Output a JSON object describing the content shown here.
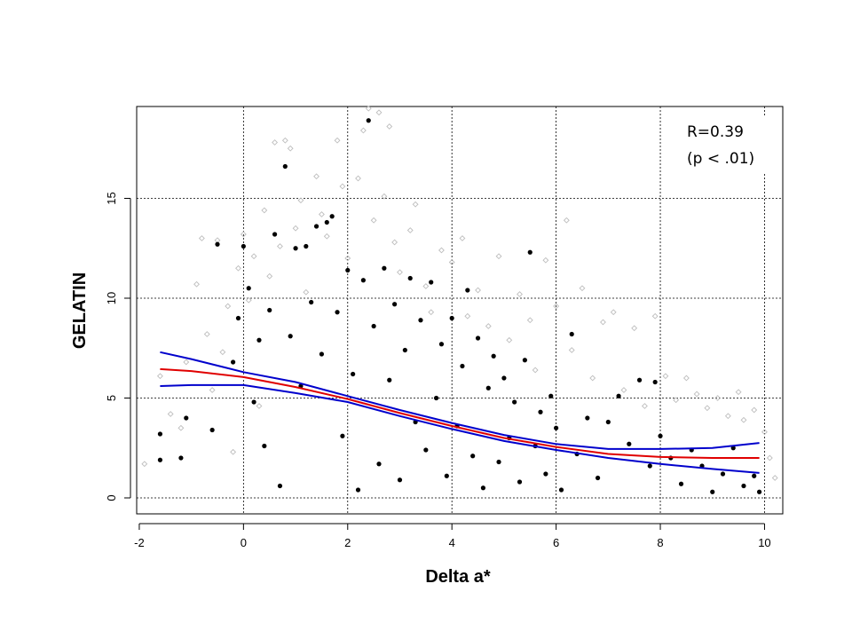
{
  "chart_data": {
    "type": "scatter",
    "xlabel": "Delta a*",
    "ylabel": "GELATIN",
    "xlim": [
      -2.05,
      10.35
    ],
    "ylim": [
      -0.8,
      19.6
    ],
    "x_ticks": [
      -2,
      0,
      2,
      4,
      6,
      8,
      10
    ],
    "y_ticks": [
      0,
      5,
      10,
      15
    ],
    "grid": true,
    "annotations": [
      "R=0.39",
      "(p < .01)"
    ],
    "colors": {
      "background_points": "#bdbdbd",
      "foreground_points": "#000000",
      "fit_line": "#e00000",
      "confidence_band": "#0000cc"
    },
    "series": [
      {
        "marker": "open-diamond",
        "color": "#bdbdbd",
        "points": [
          [
            -1.9,
            1.7
          ],
          [
            -1.6,
            6.1
          ],
          [
            -1.4,
            4.2
          ],
          [
            -1.2,
            3.5
          ],
          [
            -1.1,
            6.8
          ],
          [
            -0.9,
            10.7
          ],
          [
            -0.8,
            13.0
          ],
          [
            -0.7,
            8.2
          ],
          [
            -0.6,
            5.4
          ],
          [
            -0.5,
            12.9
          ],
          [
            -0.4,
            7.3
          ],
          [
            -0.3,
            9.6
          ],
          [
            -0.2,
            2.3
          ],
          [
            -0.1,
            11.5
          ],
          [
            0.0,
            13.2
          ],
          [
            0.1,
            9.9
          ],
          [
            0.2,
            12.1
          ],
          [
            0.3,
            4.6
          ],
          [
            0.4,
            14.4
          ],
          [
            0.5,
            11.1
          ],
          [
            0.6,
            17.8
          ],
          [
            0.7,
            12.6
          ],
          [
            0.8,
            17.9
          ],
          [
            0.9,
            17.5
          ],
          [
            1.0,
            13.5
          ],
          [
            1.1,
            14.9
          ],
          [
            1.2,
            10.3
          ],
          [
            1.4,
            16.1
          ],
          [
            1.5,
            14.2
          ],
          [
            1.6,
            13.1
          ],
          [
            1.8,
            17.9
          ],
          [
            1.9,
            15.6
          ],
          [
            2.0,
            12.0
          ],
          [
            2.2,
            16.0
          ],
          [
            2.3,
            18.4
          ],
          [
            2.4,
            19.5
          ],
          [
            2.5,
            13.9
          ],
          [
            2.6,
            19.3
          ],
          [
            2.7,
            15.1
          ],
          [
            2.8,
            18.6
          ],
          [
            2.9,
            12.8
          ],
          [
            3.0,
            11.3
          ],
          [
            3.2,
            13.4
          ],
          [
            3.3,
            14.7
          ],
          [
            3.5,
            10.6
          ],
          [
            3.6,
            9.3
          ],
          [
            3.8,
            12.4
          ],
          [
            4.0,
            11.8
          ],
          [
            4.2,
            13.0
          ],
          [
            4.3,
            9.1
          ],
          [
            4.5,
            10.4
          ],
          [
            4.7,
            8.6
          ],
          [
            4.9,
            12.1
          ],
          [
            5.1,
            7.9
          ],
          [
            5.3,
            10.2
          ],
          [
            5.5,
            8.9
          ],
          [
            5.6,
            6.4
          ],
          [
            5.8,
            11.9
          ],
          [
            6.0,
            9.6
          ],
          [
            6.2,
            13.9
          ],
          [
            6.3,
            7.4
          ],
          [
            6.5,
            10.5
          ],
          [
            6.7,
            6.0
          ],
          [
            6.9,
            8.8
          ],
          [
            7.1,
            9.3
          ],
          [
            7.3,
            5.4
          ],
          [
            7.5,
            8.5
          ],
          [
            7.7,
            4.6
          ],
          [
            7.9,
            9.1
          ],
          [
            8.1,
            6.1
          ],
          [
            8.3,
            4.9
          ],
          [
            8.5,
            6.0
          ],
          [
            8.7,
            5.2
          ],
          [
            8.9,
            4.5
          ],
          [
            9.1,
            5.0
          ],
          [
            9.3,
            4.1
          ],
          [
            9.5,
            5.3
          ],
          [
            9.6,
            3.9
          ],
          [
            9.8,
            4.4
          ],
          [
            10.0,
            3.3
          ],
          [
            10.1,
            2.0
          ],
          [
            10.2,
            1.0
          ]
        ]
      },
      {
        "marker": "filled-circle",
        "color": "#000000",
        "points": [
          [
            -1.6,
            1.9
          ],
          [
            -1.6,
            3.2
          ],
          [
            -1.2,
            2.0
          ],
          [
            -1.1,
            4.0
          ],
          [
            -0.6,
            3.4
          ],
          [
            -0.5,
            12.7
          ],
          [
            -0.2,
            6.8
          ],
          [
            -0.1,
            9.0
          ],
          [
            0.0,
            12.6
          ],
          [
            0.1,
            10.5
          ],
          [
            0.2,
            4.8
          ],
          [
            0.3,
            7.9
          ],
          [
            0.4,
            2.6
          ],
          [
            0.5,
            9.4
          ],
          [
            0.6,
            13.2
          ],
          [
            0.7,
            0.6
          ],
          [
            0.8,
            16.6
          ],
          [
            0.9,
            8.1
          ],
          [
            1.0,
            12.5
          ],
          [
            1.1,
            5.6
          ],
          [
            1.2,
            12.6
          ],
          [
            1.3,
            9.8
          ],
          [
            1.4,
            13.6
          ],
          [
            1.5,
            7.2
          ],
          [
            1.6,
            13.8
          ],
          [
            1.7,
            14.1
          ],
          [
            1.8,
            9.3
          ],
          [
            1.9,
            3.1
          ],
          [
            2.0,
            11.4
          ],
          [
            2.1,
            6.2
          ],
          [
            2.2,
            0.4
          ],
          [
            2.3,
            10.9
          ],
          [
            2.4,
            18.9
          ],
          [
            2.5,
            8.6
          ],
          [
            2.6,
            1.7
          ],
          [
            2.7,
            11.5
          ],
          [
            2.8,
            5.9
          ],
          [
            2.9,
            9.7
          ],
          [
            3.0,
            0.9
          ],
          [
            3.1,
            7.4
          ],
          [
            3.2,
            11.0
          ],
          [
            3.3,
            3.8
          ],
          [
            3.4,
            8.9
          ],
          [
            3.5,
            2.4
          ],
          [
            3.6,
            10.8
          ],
          [
            3.7,
            5.0
          ],
          [
            3.8,
            7.7
          ],
          [
            3.9,
            1.1
          ],
          [
            4.0,
            9.0
          ],
          [
            4.1,
            3.6
          ],
          [
            4.2,
            6.6
          ],
          [
            4.3,
            10.4
          ],
          [
            4.4,
            2.1
          ],
          [
            4.5,
            8.0
          ],
          [
            4.6,
            0.5
          ],
          [
            4.7,
            5.5
          ],
          [
            4.8,
            7.1
          ],
          [
            4.9,
            1.8
          ],
          [
            5.0,
            6.0
          ],
          [
            5.1,
            3.0
          ],
          [
            5.2,
            4.8
          ],
          [
            5.3,
            0.8
          ],
          [
            5.4,
            6.9
          ],
          [
            5.5,
            12.3
          ],
          [
            5.6,
            2.6
          ],
          [
            5.7,
            4.3
          ],
          [
            5.8,
            1.2
          ],
          [
            5.9,
            5.1
          ],
          [
            6.0,
            3.5
          ],
          [
            6.1,
            0.4
          ],
          [
            6.3,
            8.2
          ],
          [
            6.4,
            2.2
          ],
          [
            6.6,
            4.0
          ],
          [
            6.8,
            1.0
          ],
          [
            7.0,
            3.8
          ],
          [
            7.2,
            5.1
          ],
          [
            7.4,
            2.7
          ],
          [
            7.6,
            5.9
          ],
          [
            7.8,
            1.6
          ],
          [
            7.9,
            5.8
          ],
          [
            8.0,
            3.1
          ],
          [
            8.2,
            2.0
          ],
          [
            8.4,
            0.7
          ],
          [
            8.6,
            2.4
          ],
          [
            8.8,
            1.6
          ],
          [
            9.0,
            0.3
          ],
          [
            9.2,
            1.2
          ],
          [
            9.4,
            2.5
          ],
          [
            9.6,
            0.6
          ],
          [
            9.8,
            1.1
          ],
          [
            9.9,
            0.3
          ]
        ]
      },
      {
        "name": "",
        "type": "line",
        "color": "#e00000",
        "points": [
          [
            -1.6,
            6.45
          ],
          [
            -1.0,
            6.35
          ],
          [
            0.0,
            6.05
          ],
          [
            1.0,
            5.55
          ],
          [
            2.0,
            4.95
          ],
          [
            3.0,
            4.25
          ],
          [
            4.0,
            3.6
          ],
          [
            5.0,
            3.0
          ],
          [
            6.0,
            2.55
          ],
          [
            7.0,
            2.2
          ],
          [
            8.0,
            2.05
          ],
          [
            9.0,
            2.0
          ],
          [
            9.9,
            2.0
          ]
        ]
      },
      {
        "name": "",
        "type": "line",
        "color": "#0000cc",
        "points": [
          [
            -1.6,
            7.3
          ],
          [
            -1.0,
            6.95
          ],
          [
            0.0,
            6.3
          ],
          [
            1.0,
            5.8
          ],
          [
            2.0,
            5.1
          ],
          [
            3.0,
            4.4
          ],
          [
            4.0,
            3.75
          ],
          [
            5.0,
            3.15
          ],
          [
            6.0,
            2.7
          ],
          [
            7.0,
            2.45
          ],
          [
            8.0,
            2.45
          ],
          [
            9.0,
            2.5
          ],
          [
            9.9,
            2.75
          ]
        ]
      },
      {
        "name": "",
        "type": "line",
        "color": "#0000cc",
        "points": [
          [
            -1.6,
            5.6
          ],
          [
            -1.0,
            5.65
          ],
          [
            0.0,
            5.65
          ],
          [
            1.0,
            5.25
          ],
          [
            2.0,
            4.8
          ],
          [
            3.0,
            4.1
          ],
          [
            4.0,
            3.45
          ],
          [
            5.0,
            2.85
          ],
          [
            6.0,
            2.4
          ],
          [
            7.0,
            2.0
          ],
          [
            8.0,
            1.7
          ],
          [
            9.0,
            1.45
          ],
          [
            9.9,
            1.25
          ]
        ]
      }
    ]
  }
}
